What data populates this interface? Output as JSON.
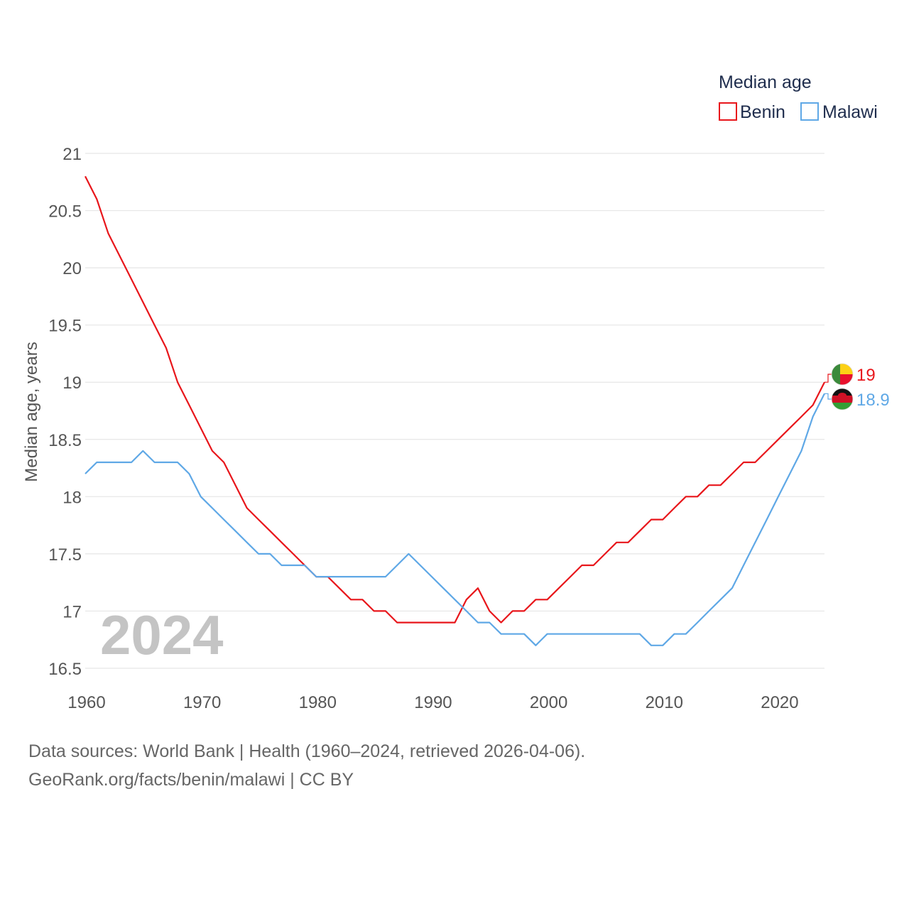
{
  "chart_data": {
    "type": "line",
    "ylabel": "Median age, years",
    "xlabel": "",
    "ylim": [
      16.5,
      21
    ],
    "xlim": [
      1960,
      2024
    ],
    "yticks": [
      16.5,
      17,
      17.5,
      18,
      18.5,
      19,
      19.5,
      20,
      20.5,
      21
    ],
    "ytick_labels": [
      "16.5",
      "17",
      "17.5",
      "18",
      "18.5",
      "19",
      "19.5",
      "20",
      "20.5",
      "21"
    ],
    "xticks": [
      1960,
      1970,
      1980,
      1990,
      2000,
      2010,
      2020
    ],
    "xtick_labels": [
      "1960",
      "1970",
      "1980",
      "1990",
      "2000",
      "2010",
      "2020"
    ],
    "grid": true,
    "legend": {
      "title": "Median age",
      "position": "top-right"
    },
    "year_label": "2024",
    "x": [
      1960,
      1961,
      1962,
      1963,
      1964,
      1965,
      1966,
      1967,
      1968,
      1969,
      1970,
      1971,
      1972,
      1973,
      1974,
      1975,
      1976,
      1977,
      1978,
      1979,
      1980,
      1981,
      1982,
      1983,
      1984,
      1985,
      1986,
      1987,
      1988,
      1989,
      1990,
      1991,
      1992,
      1993,
      1994,
      1995,
      1996,
      1997,
      1998,
      1999,
      2000,
      2001,
      2002,
      2003,
      2004,
      2005,
      2006,
      2007,
      2008,
      2009,
      2010,
      2011,
      2012,
      2013,
      2014,
      2015,
      2016,
      2017,
      2018,
      2019,
      2020,
      2021,
      2022,
      2023,
      2024
    ],
    "series": [
      {
        "name": "Benin",
        "color": "#e8161b",
        "end_label": "19",
        "values": [
          20.8,
          20.6,
          20.3,
          20.1,
          19.9,
          19.7,
          19.5,
          19.3,
          19.0,
          18.8,
          18.6,
          18.4,
          18.3,
          18.1,
          17.9,
          17.8,
          17.7,
          17.6,
          17.5,
          17.4,
          17.3,
          17.3,
          17.2,
          17.1,
          17.1,
          17.0,
          17.0,
          16.9,
          16.9,
          16.9,
          16.9,
          16.9,
          16.9,
          17.1,
          17.2,
          17.0,
          16.9,
          17.0,
          17.0,
          17.1,
          17.1,
          17.2,
          17.3,
          17.4,
          17.4,
          17.5,
          17.6,
          17.6,
          17.7,
          17.8,
          17.8,
          17.9,
          18.0,
          18.0,
          18.1,
          18.1,
          18.2,
          18.3,
          18.3,
          18.4,
          18.5,
          18.6,
          18.7,
          18.8,
          19.0
        ]
      },
      {
        "name": "Malawi",
        "color": "#5fa8e6",
        "end_label": "18.9",
        "values": [
          18.2,
          18.3,
          18.3,
          18.3,
          18.3,
          18.4,
          18.3,
          18.3,
          18.3,
          18.2,
          18.0,
          17.9,
          17.8,
          17.7,
          17.6,
          17.5,
          17.5,
          17.4,
          17.4,
          17.4,
          17.3,
          17.3,
          17.3,
          17.3,
          17.3,
          17.3,
          17.3,
          17.4,
          17.5,
          17.4,
          17.3,
          17.2,
          17.1,
          17.0,
          16.9,
          16.9,
          16.8,
          16.8,
          16.8,
          16.7,
          16.8,
          16.8,
          16.8,
          16.8,
          16.8,
          16.8,
          16.8,
          16.8,
          16.8,
          16.7,
          16.7,
          16.8,
          16.8,
          16.9,
          17.0,
          17.1,
          17.2,
          17.4,
          17.6,
          17.8,
          18.0,
          18.2,
          18.4,
          18.7,
          18.9
        ]
      }
    ]
  },
  "flags": {
    "benin": {
      "colors": [
        "#3b8a3b",
        "#fcd116",
        "#e8112d"
      ],
      "icon": "benin-flag-icon"
    },
    "malawi": {
      "colors": [
        "#111111",
        "#ce1126",
        "#339e35"
      ],
      "icon": "malawi-flag-icon"
    }
  },
  "footer": {
    "line1": "Data sources: World Bank | Health (1960–2024, retrieved 2026-04-06).",
    "line2": "GeoRank.org/facts/benin/malawi | CC BY"
  }
}
